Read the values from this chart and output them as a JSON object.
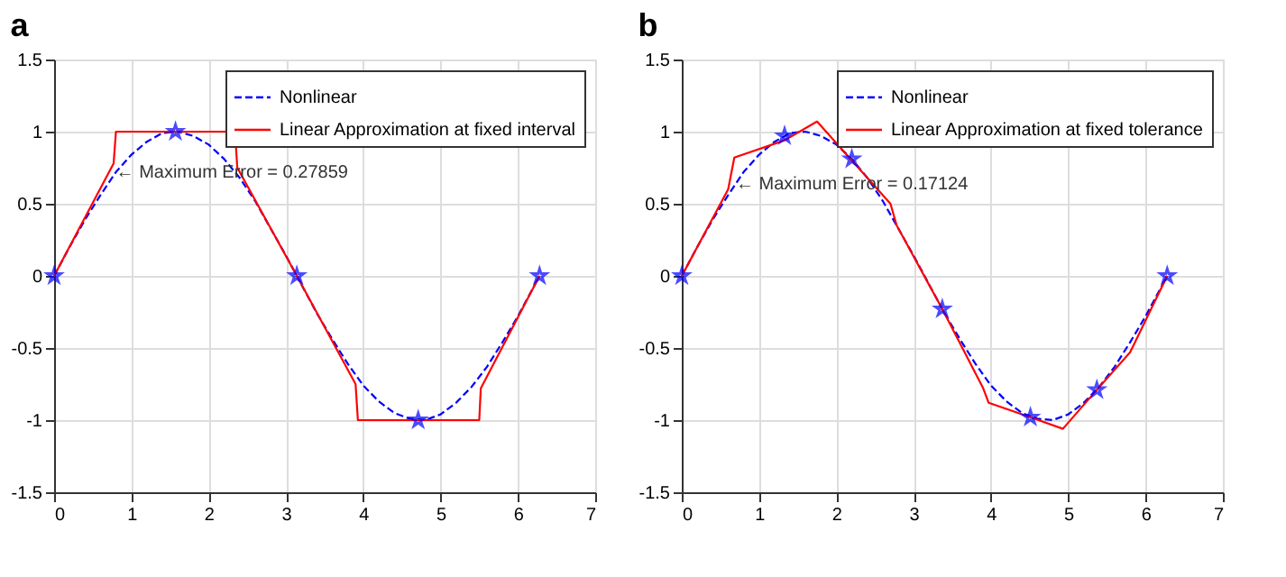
{
  "chart_data": [
    {
      "type": "line",
      "title": "a",
      "xlim": [
        0,
        7
      ],
      "ylim": [
        -1.5,
        1.5
      ],
      "xticks": [
        0,
        1,
        2,
        3,
        4,
        5,
        6,
        7
      ],
      "yticks": [
        -1.5,
        -1,
        -0.5,
        0,
        0.5,
        1,
        1.5
      ],
      "grid": true,
      "legend": "top right",
      "annotations": [
        {
          "text": "← Maximum Error = 0.27859",
          "x": 0.8,
          "y": 0.72
        }
      ],
      "series": [
        {
          "name": "Nonlinear",
          "color": "#0000ff",
          "line_style": "dashed",
          "x": [
            0,
            0.2,
            0.4,
            0.6,
            0.8,
            1.0,
            1.2,
            1.4,
            1.6,
            1.8,
            2.0,
            2.2,
            2.4,
            2.6,
            2.8,
            3.0,
            3.2,
            3.4,
            3.6,
            3.8,
            4.0,
            4.2,
            4.4,
            4.6,
            4.8,
            5.0,
            5.2,
            5.4,
            5.6,
            5.8,
            6.0,
            6.2,
            6.28
          ],
          "values": [
            0,
            0.2,
            0.39,
            0.56,
            0.72,
            0.84,
            0.93,
            0.99,
            1.0,
            0.97,
            0.91,
            0.81,
            0.68,
            0.52,
            0.33,
            0.14,
            -0.06,
            -0.26,
            -0.44,
            -0.61,
            -0.76,
            -0.87,
            -0.95,
            -0.99,
            -1.0,
            -0.96,
            -0.88,
            -0.77,
            -0.63,
            -0.46,
            -0.28,
            -0.08,
            0
          ]
        },
        {
          "name": "Linear Approximation at fixed interval",
          "color": "#ff0000",
          "line_style": "solid",
          "x": [
            0,
            0.77,
            0.8,
            2.34,
            2.37,
            3.14,
            3.9,
            3.93,
            5.5,
            5.52,
            6.28
          ],
          "values": [
            0,
            0.78,
            1,
            1,
            0.75,
            0,
            -0.75,
            -1,
            -1,
            -0.78,
            0
          ]
        },
        {
          "type": "scatter",
          "color": "#0000ff",
          "marker": "star",
          "x": [
            0,
            1.57,
            3.14,
            4.71,
            6.28
          ],
          "values": [
            0,
            1,
            0,
            -1,
            0
          ]
        }
      ]
    },
    {
      "type": "line",
      "title": "b",
      "xlim": [
        0,
        7
      ],
      "ylim": [
        -1.5,
        1.5
      ],
      "xticks": [
        0,
        1,
        2,
        3,
        4,
        5,
        6,
        7
      ],
      "yticks": [
        -1.5,
        -1,
        -0.5,
        0,
        0.5,
        1,
        1.5
      ],
      "grid": true,
      "legend": "top right",
      "annotations": [
        {
          "text": "← Maximum Error = 0.17124",
          "x": 0.7,
          "y": 0.64
        }
      ],
      "series": [
        {
          "name": "Nonlinear",
          "color": "#0000ff",
          "line_style": "dashed",
          "x": [
            0,
            0.2,
            0.4,
            0.6,
            0.8,
            1.0,
            1.2,
            1.4,
            1.6,
            1.8,
            2.0,
            2.2,
            2.4,
            2.6,
            2.8,
            3.0,
            3.2,
            3.4,
            3.6,
            3.8,
            4.0,
            4.2,
            4.4,
            4.6,
            4.8,
            5.0,
            5.2,
            5.4,
            5.6,
            5.8,
            6.0,
            6.2,
            6.28
          ],
          "values": [
            0,
            0.2,
            0.39,
            0.56,
            0.72,
            0.84,
            0.93,
            0.99,
            1.0,
            0.97,
            0.91,
            0.81,
            0.68,
            0.52,
            0.33,
            0.14,
            -0.06,
            -0.26,
            -0.44,
            -0.61,
            -0.76,
            -0.87,
            -0.95,
            -0.99,
            -1.0,
            -0.96,
            -0.88,
            -0.77,
            -0.63,
            -0.46,
            -0.28,
            -0.08,
            0
          ]
        },
        {
          "name": "Linear Approximation at fixed tolerance",
          "color": "#ff0000",
          "line_style": "solid",
          "x": [
            0,
            0.6,
            0.68,
            1.33,
            1.75,
            2.2,
            2.7,
            2.78,
            3.37,
            3.9,
            3.97,
            4.51,
            4.93,
            5.37,
            5.8,
            6.28
          ],
          "values": [
            0,
            0.6,
            0.82,
            0.94,
            1.07,
            0.8,
            0.5,
            0.35,
            -0.23,
            -0.78,
            -0.88,
            -0.98,
            -1.06,
            -0.79,
            -0.53,
            0
          ]
        },
        {
          "type": "scatter",
          "color": "#0000ff",
          "marker": "star",
          "x": [
            0,
            1.33,
            2.2,
            3.37,
            4.51,
            5.37,
            6.28
          ],
          "values": [
            0,
            0.97,
            0.81,
            -0.23,
            -0.98,
            -0.79,
            0
          ]
        }
      ]
    }
  ]
}
